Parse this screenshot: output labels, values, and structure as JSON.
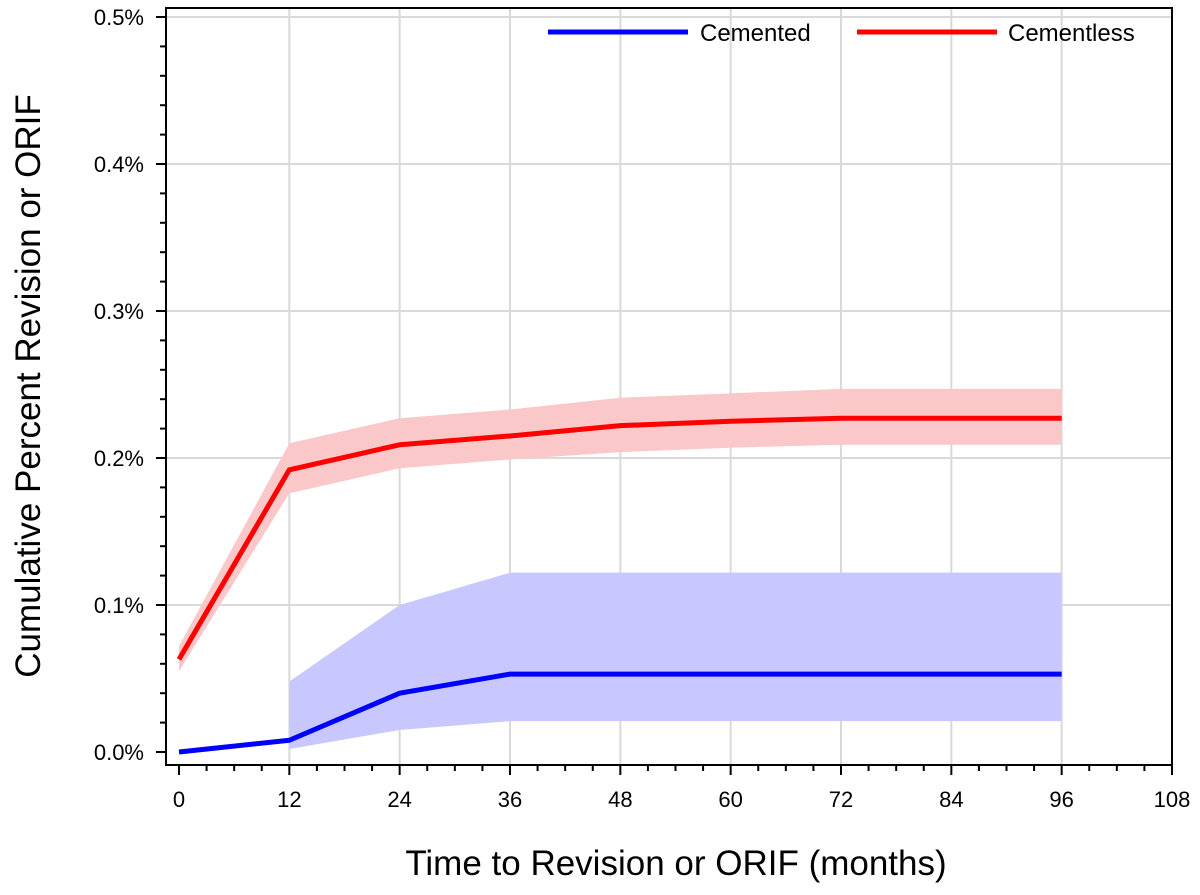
{
  "chart_data": {
    "type": "line",
    "title": "",
    "xlabel": "Time to Revision or ORIF (months)",
    "ylabel": "Cumulative Percent Revision or ORIF",
    "xlim": [
      0,
      108
    ],
    "ylim": [
      0,
      0.5
    ],
    "x_ticks": [
      0,
      12,
      24,
      36,
      48,
      60,
      72,
      84,
      96,
      108
    ],
    "x_tick_labels": [
      "0",
      "12",
      "24",
      "36",
      "48",
      "60",
      "72",
      "84",
      "96",
      "108"
    ],
    "y_ticks": [
      0,
      0.1,
      0.2,
      0.3,
      0.4,
      0.5
    ],
    "y_tick_labels": [
      "0.0%",
      "0.1%",
      "0.2%",
      "0.3%",
      "0.4%",
      "0.5%"
    ],
    "grid": true,
    "legend_position": "top-right",
    "series": [
      {
        "name": "Cemented",
        "color": "#0000ff",
        "band_color": "#c8c8ff",
        "x": [
          0,
          12,
          24,
          36,
          48,
          60,
          72,
          84,
          96
        ],
        "values": [
          0.0,
          0.008,
          0.04,
          0.053,
          0.053,
          0.053,
          0.053,
          0.053,
          0.053
        ],
        "ci_x": [
          12,
          24,
          36,
          48,
          60,
          72,
          84,
          96
        ],
        "ci_lower": [
          0.002,
          0.015,
          0.021,
          0.021,
          0.021,
          0.021,
          0.021,
          0.021
        ],
        "ci_upper": [
          0.048,
          0.1,
          0.122,
          0.122,
          0.122,
          0.122,
          0.122,
          0.122
        ]
      },
      {
        "name": "Cementless",
        "color": "#ff0000",
        "band_color": "#fac8c8",
        "x": [
          0,
          12,
          24,
          36,
          48,
          60,
          72,
          84,
          96
        ],
        "values": [
          0.063,
          0.192,
          0.209,
          0.215,
          0.222,
          0.225,
          0.227,
          0.227,
          0.227
        ],
        "ci_x": [
          0,
          12,
          24,
          36,
          48,
          60,
          72,
          84,
          96
        ],
        "ci_lower": [
          0.055,
          0.176,
          0.193,
          0.199,
          0.204,
          0.207,
          0.209,
          0.209,
          0.209
        ],
        "ci_upper": [
          0.072,
          0.21,
          0.227,
          0.233,
          0.241,
          0.244,
          0.247,
          0.247,
          0.247
        ]
      }
    ]
  }
}
